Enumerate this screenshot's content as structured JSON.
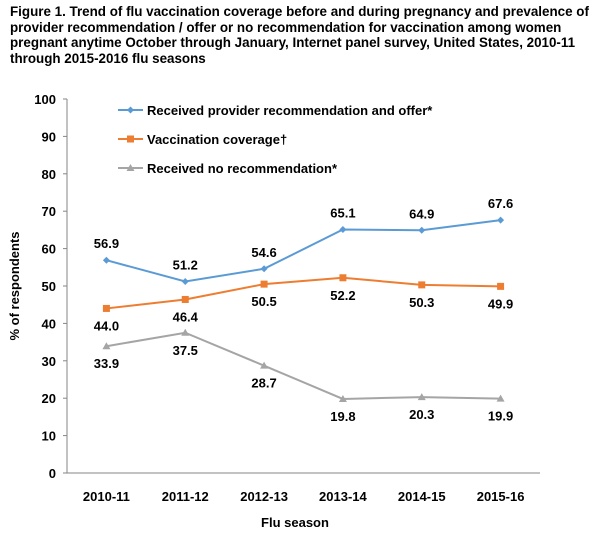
{
  "chart_data": {
    "type": "line",
    "title": "Figure 1. Trend of flu vaccination coverage before and during pregnancy and prevalence of provider recommendation / offer or no recommendation for vaccination among women pregnant anytime October through January, Internet panel survey, United States,  2010-11 through 2015-2016 flu seasons",
    "xlabel": "Flu season",
    "ylabel": "% of respondents",
    "ylim": [
      0,
      100
    ],
    "yticks": [
      0,
      10,
      20,
      30,
      40,
      50,
      60,
      70,
      80,
      90,
      100
    ],
    "categories": [
      "2010-11",
      "2011-12",
      "2012-13",
      "2013-14",
      "2014-15",
      "2015-16"
    ],
    "grid": false,
    "legend_position": "top-left",
    "series": [
      {
        "name": "Received provider recommendation and offer*",
        "color": "#5B9BD5",
        "marker": "diamond",
        "label_position": "above",
        "values": [
          56.9,
          51.2,
          54.6,
          65.1,
          64.9,
          67.6
        ],
        "labels": [
          "56.9",
          "51.2",
          "54.6",
          "65.1",
          "64.9",
          "67.6"
        ]
      },
      {
        "name": "Vaccination coverage†",
        "color": "#ED7D31",
        "marker": "square",
        "label_position": "below",
        "values": [
          44.0,
          46.4,
          50.5,
          52.2,
          50.3,
          49.9
        ],
        "labels": [
          "44.0",
          "46.4",
          "50.5",
          "52.2",
          "50.3",
          "49.9"
        ]
      },
      {
        "name": "Received no recommendation*",
        "color": "#A5A5A5",
        "marker": "triangle",
        "label_position": "below",
        "values": [
          33.9,
          37.5,
          28.7,
          19.8,
          20.3,
          19.9
        ],
        "labels": [
          "33.9",
          "37.5",
          "28.7",
          "19.8",
          "20.3",
          "19.9"
        ]
      }
    ]
  }
}
